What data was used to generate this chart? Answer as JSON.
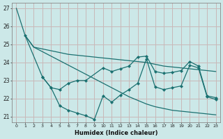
{
  "xlabel": "Humidex (Indice chaleur)",
  "ylabel": "",
  "background_color": "#cce8e8",
  "grid_color": "#c8b8b8",
  "line_color": "#1a7070",
  "xlim": [
    -0.5,
    23.5
  ],
  "ylim": [
    20.7,
    27.3
  ],
  "yticks": [
    21,
    22,
    23,
    24,
    25,
    26,
    27
  ],
  "xticks": [
    0,
    1,
    2,
    3,
    4,
    5,
    6,
    7,
    8,
    9,
    10,
    11,
    12,
    13,
    14,
    15,
    16,
    17,
    18,
    19,
    20,
    21,
    22,
    23
  ],
  "series": [
    {
      "x": [
        0,
        1,
        2,
        3,
        4,
        5,
        6,
        7,
        8,
        9,
        10,
        11,
        12,
        13,
        14,
        15,
        16,
        17,
        18,
        19,
        20,
        21,
        22,
        23
      ],
      "y": [
        27.0,
        25.5,
        24.85,
        24.75,
        24.65,
        24.55,
        24.45,
        24.4,
        24.35,
        24.3,
        24.25,
        24.2,
        24.15,
        24.1,
        24.05,
        24.0,
        23.9,
        23.8,
        23.75,
        23.7,
        23.65,
        23.6,
        23.55,
        23.5
      ],
      "markers": false
    },
    {
      "x": [
        1,
        2,
        3,
        4,
        5,
        6,
        7,
        8,
        9,
        10,
        11,
        12,
        13,
        14,
        15,
        16,
        17,
        18,
        19,
        20,
        21,
        22,
        23
      ],
      "y": [
        25.5,
        24.85,
        24.6,
        24.35,
        24.1,
        23.85,
        23.6,
        23.35,
        23.1,
        22.85,
        22.6,
        22.35,
        22.1,
        21.9,
        21.7,
        21.55,
        21.45,
        21.35,
        21.3,
        21.25,
        21.2,
        21.15,
        21.1
      ],
      "markers": false
    },
    {
      "x": [
        1,
        3,
        4,
        5,
        6,
        7,
        8,
        10,
        11,
        12,
        13,
        14,
        15,
        16,
        17,
        18,
        19,
        20,
        21,
        22,
        23
      ],
      "y": [
        25.5,
        23.2,
        22.6,
        22.5,
        22.85,
        23.0,
        23.0,
        23.7,
        23.5,
        23.65,
        23.8,
        24.3,
        24.35,
        23.5,
        23.4,
        23.45,
        23.55,
        24.05,
        23.8,
        22.15,
        22.05
      ],
      "markers": true
    },
    {
      "x": [
        3,
        4,
        5,
        6,
        7,
        8,
        9,
        10,
        11,
        12,
        13,
        14,
        15,
        16,
        17,
        18,
        19,
        20,
        21,
        22,
        23
      ],
      "y": [
        23.2,
        22.6,
        21.6,
        21.35,
        21.2,
        21.05,
        20.85,
        22.15,
        21.8,
        22.2,
        22.5,
        22.85,
        24.2,
        22.65,
        22.5,
        22.6,
        22.7,
        23.85,
        23.7,
        22.1,
        21.95
      ],
      "markers": true
    }
  ]
}
